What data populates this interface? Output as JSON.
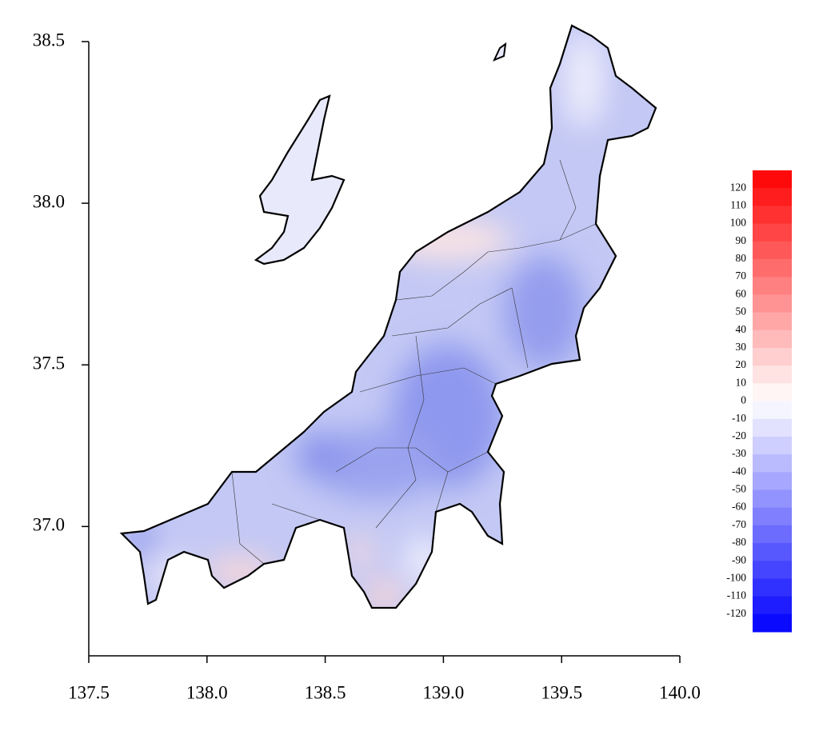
{
  "chart_data": {
    "type": "map",
    "xlim": [
      137.5,
      140
    ],
    "xticks": [
      137.5,
      {
        "value": 138,
        "label": "138.0"
      },
      138.5,
      {
        "value": 139,
        "label": "139.0"
      },
      139.5,
      {
        "value": 140,
        "label": "140.0"
      }
    ],
    "ylim": [
      36.6,
      38.5
    ],
    "yticks": [
      {
        "value": 37,
        "label": "37.0"
      },
      37.5,
      {
        "value": 38,
        "label": "38.0"
      },
      38.5
    ],
    "colorbar": {
      "lim": [
        -130,
        130
      ],
      "ticks": [
        120,
        110,
        100,
        90,
        80,
        70,
        60,
        50,
        40,
        30,
        20,
        10,
        0,
        -10,
        -20,
        -30,
        -40,
        -50,
        -60,
        -70,
        -80,
        -90,
        -100,
        -110,
        -120
      ],
      "low_color": "#0000ff",
      "high_color": "#ff0000"
    }
  }
}
